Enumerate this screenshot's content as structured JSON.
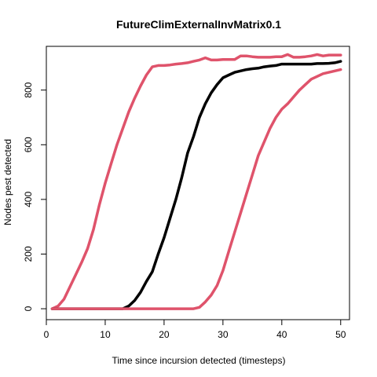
{
  "chart_data": {
    "type": "line",
    "title": "FutureClimExternalInvMatrix0.1",
    "xlabel": "Time since incursion detected (timesteps)",
    "ylabel": "Nodes pest detected",
    "xlim": [
      0,
      51.5
    ],
    "ylim": [
      -40,
      960
    ],
    "xticks": [
      0,
      10,
      20,
      30,
      40,
      50
    ],
    "yticks": [
      0,
      200,
      400,
      600,
      800
    ],
    "grid": false,
    "legend": "none",
    "series": [
      {
        "color": "#DF536B",
        "x": [
          1,
          2,
          3,
          4,
          5,
          6,
          7,
          8,
          9,
          10,
          11,
          12,
          13,
          14,
          15,
          16,
          17,
          18,
          19,
          20,
          21,
          22,
          23,
          24,
          25,
          26,
          27,
          28,
          29,
          30,
          31,
          32,
          33,
          34,
          35,
          36,
          37,
          38,
          39,
          40,
          41,
          42,
          43,
          44,
          45,
          46,
          47,
          48,
          49,
          50
        ],
        "values": [
          0,
          10,
          35,
          80,
          125,
          170,
          220,
          290,
          380,
          460,
          530,
          600,
          660,
          720,
          770,
          815,
          855,
          885,
          890,
          890,
          892,
          895,
          897,
          900,
          905,
          910,
          918,
          910,
          910,
          912,
          912,
          912,
          925,
          925,
          922,
          920,
          920,
          920,
          922,
          922,
          930,
          920,
          920,
          922,
          925,
          930,
          925,
          928,
          928,
          928
        ]
      },
      {
        "color": "#000000",
        "x": [
          1,
          2,
          3,
          4,
          5,
          6,
          7,
          8,
          9,
          10,
          11,
          12,
          13,
          14,
          15,
          16,
          17,
          18,
          19,
          20,
          21,
          22,
          23,
          24,
          25,
          26,
          27,
          28,
          29,
          30,
          31,
          32,
          33,
          34,
          35,
          36,
          37,
          38,
          39,
          40,
          41,
          42,
          43,
          44,
          45,
          46,
          47,
          48,
          49,
          50
        ],
        "values": [
          0,
          0,
          0,
          0,
          0,
          0,
          0,
          0,
          0,
          0,
          0,
          0,
          0,
          10,
          30,
          60,
          100,
          135,
          200,
          260,
          330,
          400,
          480,
          570,
          630,
          700,
          750,
          790,
          820,
          845,
          855,
          865,
          870,
          875,
          878,
          880,
          885,
          888,
          890,
          895,
          895,
          895,
          895,
          895,
          895,
          897,
          897,
          898,
          900,
          905
        ]
      },
      {
        "color": "#DF536B",
        "x": [
          1,
          2,
          3,
          4,
          5,
          6,
          7,
          8,
          9,
          10,
          11,
          12,
          13,
          14,
          15,
          16,
          17,
          18,
          19,
          20,
          21,
          22,
          23,
          24,
          25,
          26,
          27,
          28,
          29,
          30,
          31,
          32,
          33,
          34,
          35,
          36,
          37,
          38,
          39,
          40,
          41,
          42,
          43,
          44,
          45,
          46,
          47,
          48,
          49,
          50
        ],
        "values": [
          0,
          0,
          0,
          0,
          0,
          0,
          0,
          0,
          0,
          0,
          0,
          0,
          0,
          0,
          0,
          0,
          0,
          0,
          0,
          0,
          0,
          0,
          0,
          0,
          0,
          5,
          25,
          50,
          85,
          140,
          210,
          280,
          350,
          420,
          490,
          560,
          610,
          660,
          700,
          730,
          750,
          775,
          800,
          820,
          840,
          850,
          860,
          865,
          870,
          875
        ]
      }
    ]
  }
}
